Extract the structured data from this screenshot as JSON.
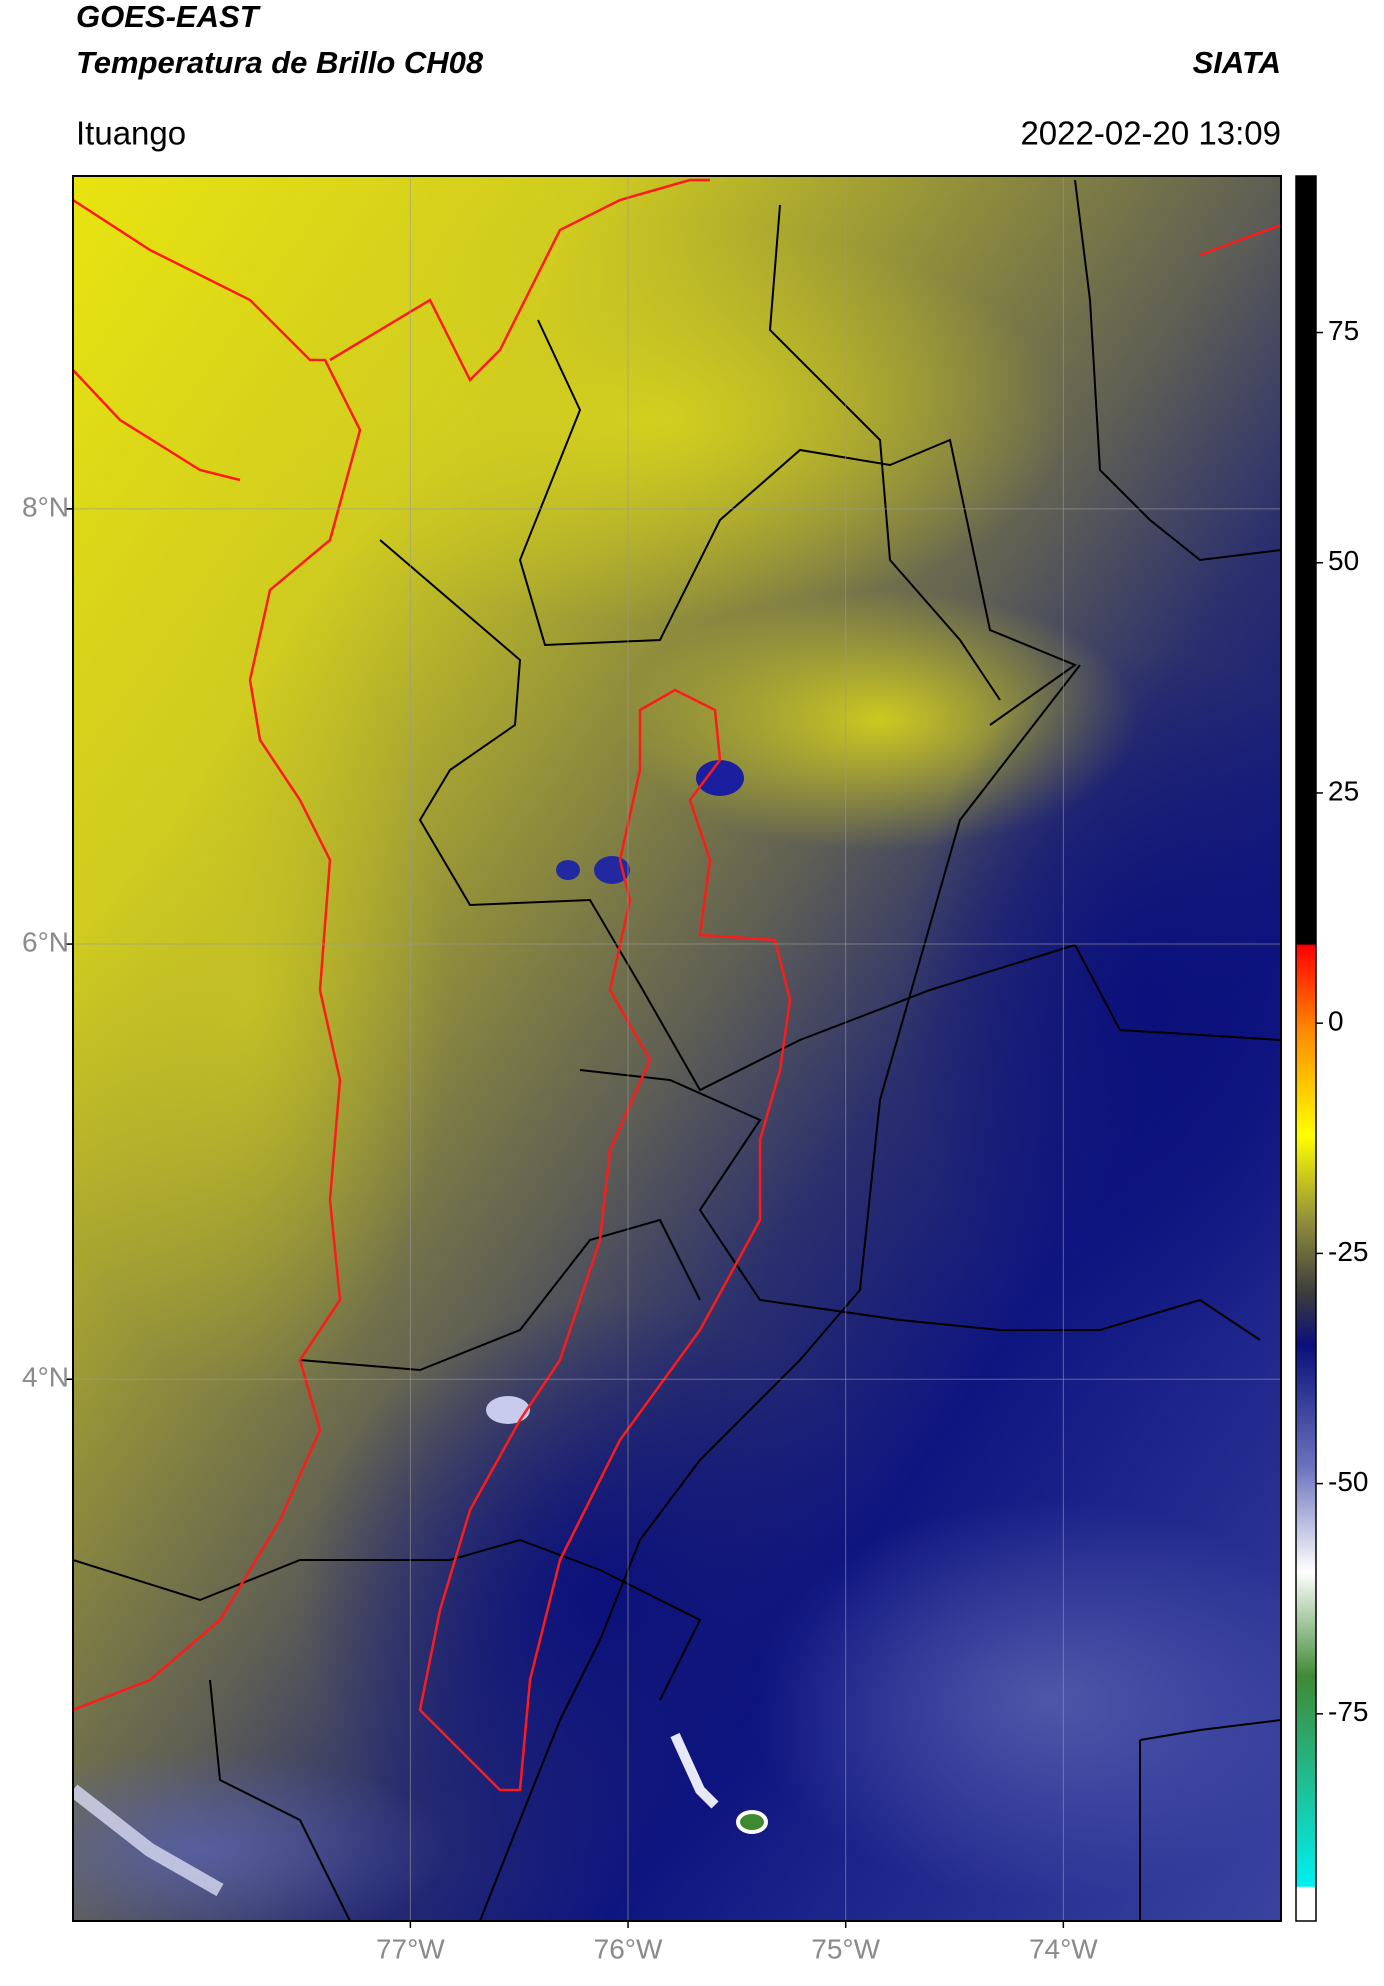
{
  "header": {
    "title": "GOES-EAST",
    "subtitle": "Temperatura de Brillo CH08",
    "source": "SIATA",
    "location": "Ituango",
    "datetime": "2022-02-20 13:09"
  },
  "map": {
    "xlim": [
      -78.55,
      -73.0
    ],
    "ylim": [
      1.51,
      9.53
    ],
    "xticks": [
      {
        "value": -77,
        "label": "77°W"
      },
      {
        "value": -76,
        "label": "76°W"
      },
      {
        "value": -75,
        "label": "75°W"
      },
      {
        "value": -74,
        "label": "74°W"
      }
    ],
    "yticks": [
      {
        "value": 8,
        "label": "8°N"
      },
      {
        "value": 6,
        "label": "6°N"
      },
      {
        "value": 4,
        "label": "4°N"
      }
    ],
    "grid": true
  },
  "colorbar": {
    "ylim": [
      -97.5,
      92
    ],
    "yticks": [
      75,
      50,
      25,
      0,
      -25,
      -50,
      -75
    ]
  }
}
